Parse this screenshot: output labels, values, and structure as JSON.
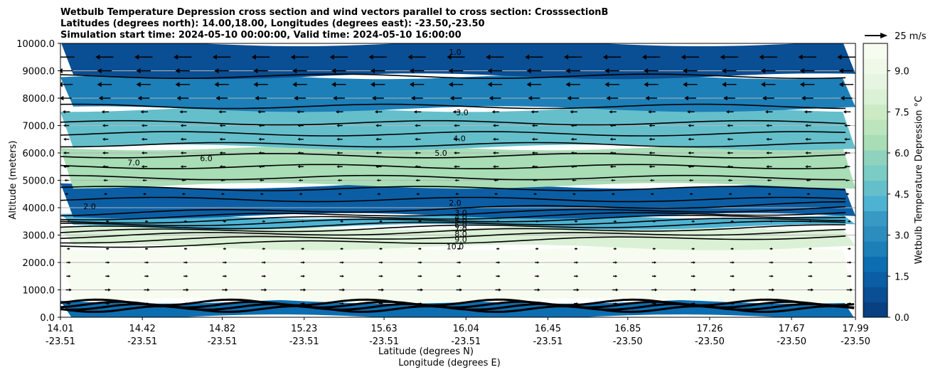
{
  "chart_data": {
    "type": "heatmap",
    "title_lines": [
      "Wetbulb Temperature Depression cross section and wind vectors parallel to cross section: CrosssectionB",
      "Latitudes (degrees north): 14.00,18.00, Longitudes (degrees east): -23.50,-23.50",
      "Simulation start time: 2024-05-10 00:00:00, Valid time: 2024-05-10 16:00:00"
    ],
    "xlabel": "Latitude (degrees N)",
    "xlabel2": "Longitude (degrees E)",
    "ylabel": "Altitude (meters)",
    "ylim": [
      0,
      10000
    ],
    "y_ticks": [
      "0.0",
      "1000.0",
      "2000.0",
      "3000.0",
      "4000.0",
      "5000.0",
      "6000.0",
      "7000.0",
      "8000.0",
      "9000.0",
      "10000.0"
    ],
    "x_ticks": [
      {
        "lat": "14.01",
        "lon": "-23.51"
      },
      {
        "lat": "14.42",
        "lon": "-23.51"
      },
      {
        "lat": "14.82",
        "lon": "-23.51"
      },
      {
        "lat": "15.23",
        "lon": "-23.51"
      },
      {
        "lat": "15.63",
        "lon": "-23.51"
      },
      {
        "lat": "16.04",
        "lon": "-23.51"
      },
      {
        "lat": "16.45",
        "lon": "-23.51"
      },
      {
        "lat": "16.85",
        "lon": "-23.50"
      },
      {
        "lat": "17.26",
        "lon": "-23.50"
      },
      {
        "lat": "17.67",
        "lon": "-23.50"
      },
      {
        "lat": "17.99",
        "lon": "-23.50"
      }
    ],
    "xlim": [
      14.01,
      17.99
    ],
    "colorbar": {
      "label": "Wetbulb Temperature Depression °C",
      "range": [
        0,
        10
      ],
      "ticks": [
        "0.0",
        "1.5",
        "3.0",
        "4.5",
        "6.0",
        "7.5",
        "9.0"
      ],
      "colormap": "GnBu_r",
      "colors": [
        "#084081",
        "#0a4e93",
        "#0b5ea4",
        "#0c6eb1",
        "#1c7fb8",
        "#2b8cbe",
        "#3999c5",
        "#4eb3d3",
        "#64bfcb",
        "#7bccc4",
        "#8fd3bf",
        "#a8ddb5",
        "#bce5bd",
        "#ccebc5",
        "#dbf1d6",
        "#e6f5e1",
        "#f0f9e8",
        "#f7fcf0"
      ]
    },
    "wind_key": {
      "label": "25 m/s",
      "speed": 25
    },
    "contour_labels": [
      "1.0",
      "2.0",
      "3.0",
      "4.0",
      "5.0",
      "6.0",
      "7.0",
      "8.0",
      "9.0",
      "10.0"
    ],
    "bands": [
      {
        "alt_low": 0,
        "alt_high": 600,
        "value": 2.0
      },
      {
        "alt_low": 600,
        "alt_high": 2550,
        "value": 10.0
      },
      {
        "alt_low": 2550,
        "alt_high": 3300,
        "value": 8.0
      },
      {
        "alt_low": 3300,
        "alt_high": 3700,
        "value": 4.0
      },
      {
        "alt_low": 3700,
        "alt_high": 4800,
        "value": 1.5
      },
      {
        "alt_low": 4800,
        "alt_high": 6200,
        "value": 6.5
      },
      {
        "alt_low": 6200,
        "alt_high": 7600,
        "value": 4.5
      },
      {
        "alt_low": 7600,
        "alt_high": 8800,
        "value": 2.5
      },
      {
        "alt_low": 8800,
        "alt_high": 10000,
        "value": 1.0
      }
    ],
    "wind_rows": [
      {
        "alt": 9500,
        "u": -12
      },
      {
        "alt": 9000,
        "u": -9
      },
      {
        "alt": 8500,
        "u": -9
      },
      {
        "alt": 8000,
        "u": -7
      },
      {
        "alt": 7500,
        "u": -4
      },
      {
        "alt": 7000,
        "u": -3
      },
      {
        "alt": 6500,
        "u": -3
      },
      {
        "alt": 6000,
        "u": -3
      },
      {
        "alt": 5500,
        "u": -3
      },
      {
        "alt": 5000,
        "u": -2
      },
      {
        "alt": 4500,
        "u": -1
      },
      {
        "alt": 3500,
        "u": 1
      },
      {
        "alt": 2500,
        "u": 1
      },
      {
        "alt": 2000,
        "u": 2
      },
      {
        "alt": 1500,
        "u": 2
      },
      {
        "alt": 1000,
        "u": 3
      },
      {
        "alt": 500,
        "u": 2
      }
    ]
  }
}
